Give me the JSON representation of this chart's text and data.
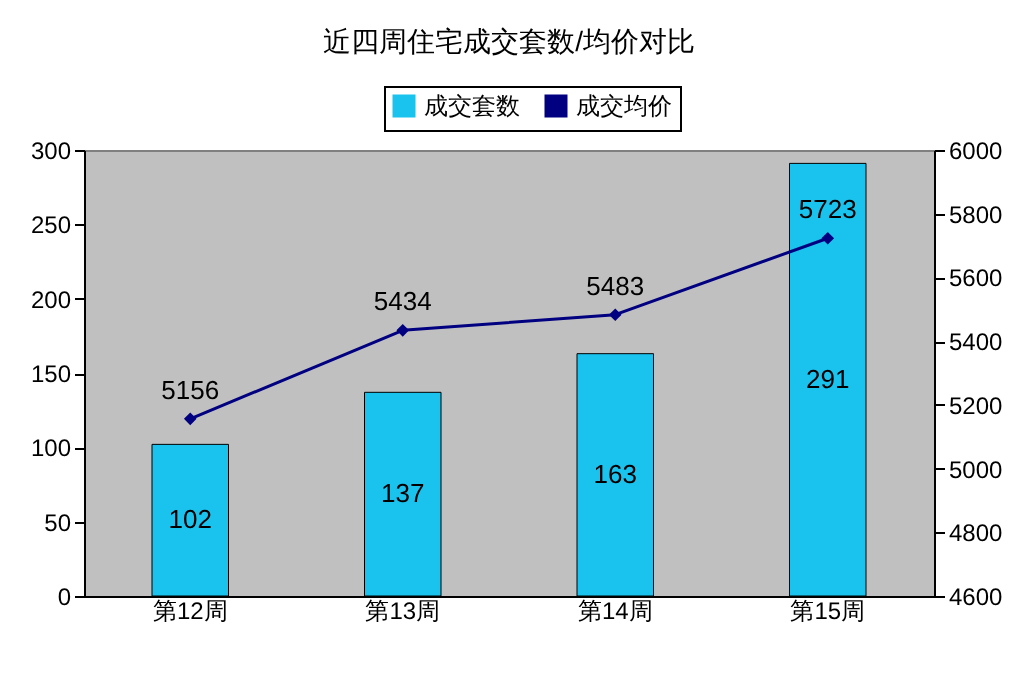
{
  "chart_data": {
    "type": "bar",
    "title": "近四周住宅成交套数/均价对比",
    "categories": [
      "第12周",
      "第13周",
      "第14周",
      "第15周"
    ],
    "series": [
      {
        "name": "成交套数",
        "color": "#19c3ee",
        "values": [
          102,
          137,
          163,
          291
        ]
      },
      {
        "name": "成交均价",
        "type": "line",
        "axis": "y2",
        "color": "#000080",
        "values": [
          5156,
          5434,
          5483,
          5723
        ]
      }
    ],
    "ylim": [
      0,
      300
    ],
    "yticks": [
      0,
      50,
      100,
      150,
      200,
      250,
      300
    ],
    "y2lim": [
      4600,
      6000
    ],
    "y2ticks": [
      4600,
      4800,
      5000,
      5200,
      5400,
      5600,
      5800,
      6000
    ],
    "data_labels": true,
    "legend": "top",
    "grid": false,
    "marker": "diamond",
    "line_style": "solid"
  }
}
